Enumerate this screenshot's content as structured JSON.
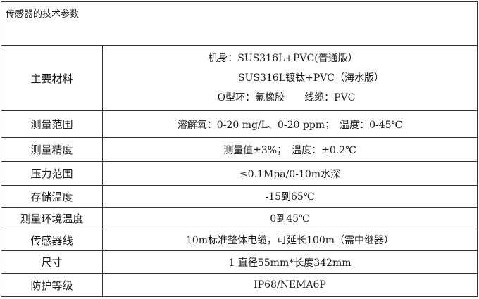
{
  "title": "传感器的技术参数",
  "rows": [
    {
      "label": "主要材料",
      "lines": [
        "机身：SUS316L+PVC(普通版）",
        "SUS316L镀钛+PVC（海水版）",
        "O型环：氟橡胶　　线缆：PVC"
      ]
    },
    {
      "label": "测量范围",
      "value": "溶解氧：0-20 mg/L、0-20 ppm；　温度：0-45℃"
    },
    {
      "label": "测量精度",
      "value": "测量值±3%；　温度：±0.2℃"
    },
    {
      "label": "压力范围",
      "value": "≤0.1Mpa/0-10m水深"
    },
    {
      "label": "存储温度",
      "value": "-15到65℃"
    },
    {
      "label": "测量环境温度",
      "value": "0到45℃"
    },
    {
      "label": "传感器线",
      "value": "10m标准整体电缆，可延长100m（需中继器）"
    },
    {
      "label": "尺寸",
      "value": "1 直径55mm*长度342mm"
    },
    {
      "label": "防护等级",
      "value": "IP68/NEMA6P"
    }
  ]
}
